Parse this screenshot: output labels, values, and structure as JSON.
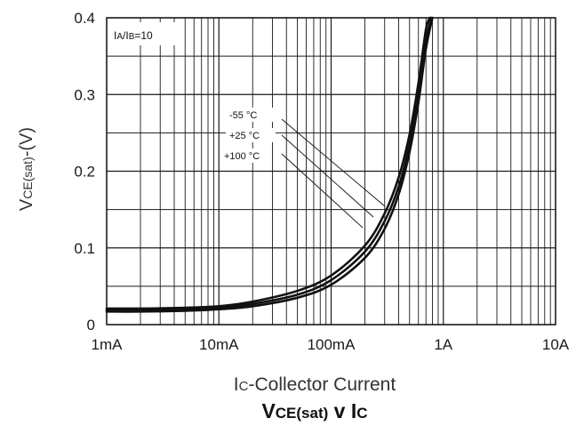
{
  "chart_data": {
    "type": "line",
    "title": "VCE(sat) v IC",
    "title_main": "V",
    "title_sub": "CE(sat)",
    "title_mid": " v I",
    "title_sub2": "C",
    "xlabel_prefix": "I",
    "xlabel_sub": "C",
    "xlabel_rest": "-Collector Current",
    "ylabel_prefix": "V",
    "ylabel_sub": "CE(sat)",
    "ylabel_rest": "-(V)",
    "x_scale": "log",
    "x_unit": "A",
    "xlim": [
      0.001,
      10
    ],
    "ylim": [
      0,
      0.4
    ],
    "x_ticks": [
      {
        "value": 0.001,
        "label": "1mA"
      },
      {
        "value": 0.01,
        "label": "10mA"
      },
      {
        "value": 0.1,
        "label": "100mA"
      },
      {
        "value": 1,
        "label": "1A"
      },
      {
        "value": 10,
        "label": "10A"
      }
    ],
    "y_ticks": [
      {
        "value": 0,
        "label": "0"
      },
      {
        "value": 0.1,
        "label": "0.1"
      },
      {
        "value": 0.2,
        "label": "0.2"
      },
      {
        "value": 0.3,
        "label": "0.3"
      },
      {
        "value": 0.4,
        "label": "0.4"
      }
    ],
    "grid": true,
    "condition": {
      "i1": "I",
      "s1": "A",
      "mid": "/I",
      "s2": "B",
      "rest": "=10"
    },
    "series": [
      {
        "name": "-55 °C",
        "x": [
          0.001,
          0.002,
          0.005,
          0.01,
          0.02,
          0.05,
          0.1,
          0.2,
          0.3,
          0.4,
          0.5,
          0.6,
          0.7,
          0.8
        ],
        "y": [
          0.017,
          0.017,
          0.018,
          0.02,
          0.024,
          0.035,
          0.052,
          0.087,
          0.125,
          0.17,
          0.225,
          0.29,
          0.36,
          0.4
        ]
      },
      {
        "name": "+25 °C",
        "x": [
          0.001,
          0.002,
          0.005,
          0.01,
          0.02,
          0.05,
          0.1,
          0.2,
          0.3,
          0.4,
          0.5,
          0.6,
          0.7,
          0.78
        ],
        "y": [
          0.019,
          0.019,
          0.02,
          0.022,
          0.027,
          0.039,
          0.058,
          0.095,
          0.135,
          0.18,
          0.235,
          0.3,
          0.37,
          0.4
        ]
      },
      {
        "name": "+100 °C",
        "x": [
          0.001,
          0.002,
          0.005,
          0.01,
          0.02,
          0.05,
          0.1,
          0.2,
          0.3,
          0.4,
          0.5,
          0.6,
          0.7,
          0.76
        ],
        "y": [
          0.021,
          0.021,
          0.022,
          0.024,
          0.03,
          0.044,
          0.064,
          0.103,
          0.145,
          0.192,
          0.248,
          0.315,
          0.385,
          0.4
        ]
      }
    ],
    "colors": {
      "curve": "#111111",
      "grid": "#1a1a1a",
      "background": "#ffffff"
    }
  }
}
